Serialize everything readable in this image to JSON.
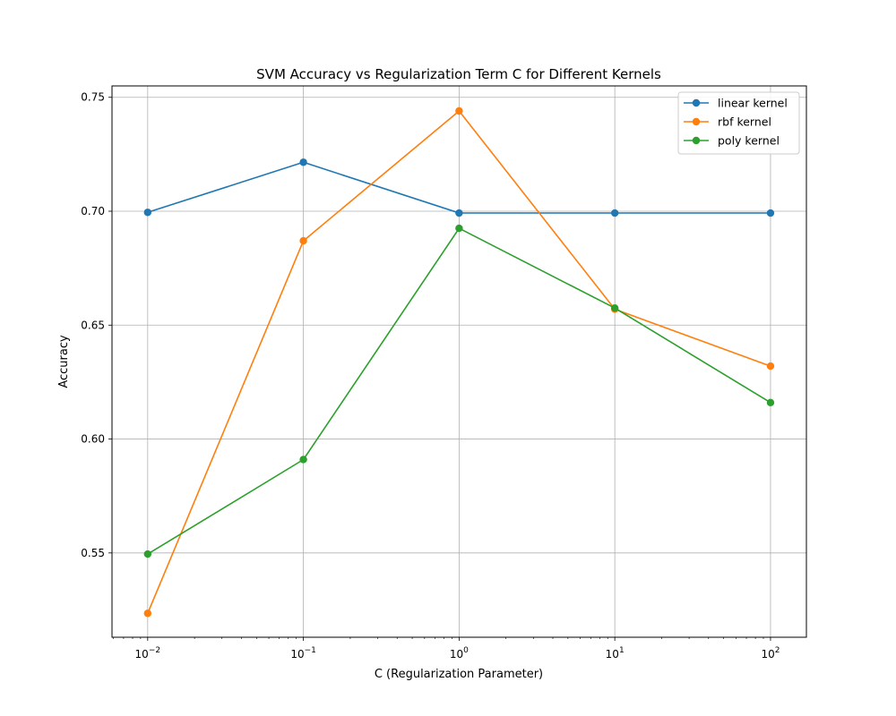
{
  "chart_data": {
    "type": "line",
    "title": "SVM Accuracy vs Regularization Term C for Different Kernels",
    "xlabel": "C (Regularization Parameter)",
    "ylabel": "Accuracy",
    "x_scale": "log",
    "x": [
      0.01,
      0.1,
      1,
      10,
      100
    ],
    "xlim": [
      0.0059,
      170
    ],
    "ylim": [
      0.513,
      0.755
    ],
    "x_ticks": [
      {
        "value": 0.01,
        "base": "10",
        "exp": "−2"
      },
      {
        "value": 0.1,
        "base": "10",
        "exp": "−1"
      },
      {
        "value": 1,
        "base": "10",
        "exp": "0"
      },
      {
        "value": 10,
        "base": "10",
        "exp": "1"
      },
      {
        "value": 100,
        "base": "10",
        "exp": "2"
      }
    ],
    "y_ticks": [
      {
        "value": 0.55,
        "label": "0.55"
      },
      {
        "value": 0.6,
        "label": "0.60"
      },
      {
        "value": 0.65,
        "label": "0.65"
      },
      {
        "value": 0.7,
        "label": "0.70"
      },
      {
        "value": 0.75,
        "label": "0.75"
      }
    ],
    "grid": true,
    "legend_position": "top-right",
    "series": [
      {
        "name": "linear kernel",
        "color": "#1f77b4",
        "values": [
          0.6995,
          0.7215,
          0.6992,
          0.6992,
          0.6992
        ]
      },
      {
        "name": "rbf kernel",
        "color": "#ff7f0e",
        "values": [
          0.5235,
          0.687,
          0.744,
          0.657,
          0.632
        ]
      },
      {
        "name": "poly kernel",
        "color": "#2ca02c",
        "values": [
          0.5495,
          0.591,
          0.6925,
          0.6575,
          0.616
        ]
      }
    ]
  }
}
